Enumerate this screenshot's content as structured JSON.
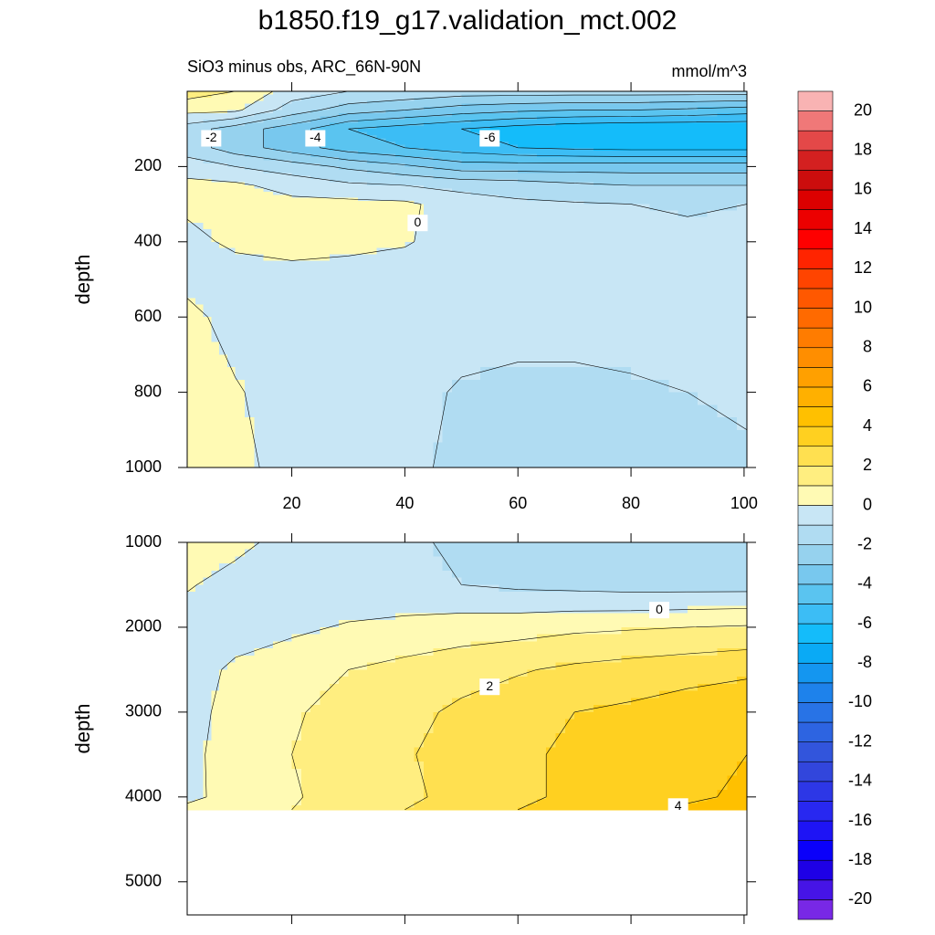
{
  "chart_data": {
    "type": "contour",
    "title": "b1850.f19_g17.validation_mct.002",
    "subtitle": "SiO3 minus obs, ARC_66N-90N",
    "units": "mmol/m^3",
    "levels": [
      -20,
      -19,
      -18,
      -17,
      -16,
      -15,
      -14,
      -13,
      -12,
      -11,
      -10,
      -9,
      -8,
      -7,
      -6,
      -5,
      -4,
      -3,
      -2,
      -1,
      0,
      1,
      2,
      3,
      4,
      5,
      6,
      7,
      8,
      9,
      10,
      11,
      12,
      13,
      14,
      15,
      16,
      17,
      18,
      19,
      20
    ],
    "colors": [
      "#7828e6",
      "#4614e6",
      "#1e00e6",
      "#0a00fa",
      "#1e14f5",
      "#2828f0",
      "#2d37e6",
      "#3246dc",
      "#3255dc",
      "#2d64e1",
      "#2873e6",
      "#1e82eb",
      "#1496f0",
      "#0aaaf5",
      "#14bcfa",
      "#3cbdf5",
      "#5ac4f0",
      "#78c8ee",
      "#96d2ee",
      "#b0dcf2",
      "#c8e6f5",
      "#fffab4",
      "#ffee80",
      "#ffe050",
      "#ffd020",
      "#ffc000",
      "#ffb000",
      "#ffa000",
      "#ff8e00",
      "#ff7c00",
      "#ff6a00",
      "#ff5800",
      "#ff4400",
      "#ff2400",
      "#fe0000",
      "#ec0000",
      "#dc0000",
      "#cc0d0d",
      "#d42020",
      "#e44848",
      "#f07878",
      "#f9b3b3"
    ],
    "colorbar_ticks": [
      20,
      18,
      16,
      14,
      12,
      10,
      8,
      6,
      4,
      2,
      0,
      -2,
      -4,
      -6,
      -8,
      -10,
      -12,
      -14,
      -16,
      -18,
      -20
    ],
    "xlim": [
      1.5,
      100.5
    ],
    "xticks": [
      20,
      40,
      60,
      80,
      100
    ],
    "x": [
      1.5,
      10,
      20,
      30,
      40,
      50,
      60,
      70,
      80,
      90,
      100.5
    ],
    "panels": [
      {
        "ylabel": "depth",
        "ylim": [
          0,
          1000
        ],
        "yticks": [
          200,
          400,
          600,
          800,
          1000
        ],
        "depth": [
          0,
          50,
          100,
          150,
          200,
          250,
          300,
          400,
          500,
          600,
          800,
          1000
        ],
        "z": [
          [
            1.5,
            1.0,
            -0.5,
            -1.0,
            -1.2,
            -1.5,
            -1.5,
            -1.5,
            -1.5,
            -1.5,
            -1.5
          ],
          [
            0.3,
            0.2,
            -1.5,
            -2.5,
            -3,
            -3.5,
            -3.8,
            -4,
            -4,
            -4.2,
            -4.5
          ],
          [
            -1.5,
            -2.5,
            -3.5,
            -5,
            -5.5,
            -6,
            -6.5,
            -6.8,
            -7,
            -7,
            -7
          ],
          [
            -1.5,
            -2.5,
            -3.5,
            -4.5,
            -5,
            -5.5,
            -6,
            -6.2,
            -6.3,
            -6.3,
            -6.3
          ],
          [
            -0.5,
            -1.0,
            -1.5,
            -2.2,
            -2.8,
            -3.5,
            -3.5,
            -3.5,
            -3.5,
            -3.5,
            -3.5
          ],
          [
            0.3,
            0.2,
            -0.4,
            -0.8,
            -1.0,
            -1.3,
            -1.5,
            -1.8,
            -2.0,
            -2.0,
            -2.0
          ],
          [
            0.2,
            0.3,
            0.3,
            0.3,
            0.2,
            -0.5,
            -0.8,
            -0.9,
            -1.0,
            -1.1,
            -1.0
          ],
          [
            -0.3,
            0.2,
            0.4,
            0.3,
            0.1,
            -0.5,
            -0.7,
            -0.7,
            -0.7,
            -0.8,
            -0.8
          ],
          [
            -0.3,
            -0.5,
            -0.4,
            -0.5,
            -0.6,
            -0.6,
            -0.6,
            -0.7,
            -0.7,
            -0.7,
            -0.7
          ],
          [
            0.3,
            -0.4,
            -0.5,
            -0.6,
            -0.6,
            -0.6,
            -0.7,
            -0.7,
            -0.7,
            -0.7,
            -0.7
          ],
          [
            0.4,
            0.1,
            -0.5,
            -0.6,
            -0.7,
            -1.1,
            -1.2,
            -1.2,
            -1.1,
            -1.0,
            -0.9
          ],
          [
            0.4,
            0.3,
            -0.4,
            -0.6,
            -0.8,
            -1.2,
            -1.2,
            -1.3,
            -1.3,
            -1.2,
            -1.1
          ]
        ]
      },
      {
        "ylabel": "depth",
        "ylim": [
          1000,
          5390
        ],
        "yticks": [
          1000,
          2000,
          3000,
          4000,
          5000
        ],
        "depth": [
          1000,
          1500,
          2000,
          2500,
          3000,
          3500,
          4000,
          4150
        ],
        "z": [
          [
            0.4,
            0.3,
            -0.4,
            -0.6,
            -0.8,
            -1.2,
            -1.2,
            -1.3,
            -1.3,
            -1.2,
            -1.1
          ],
          [
            0.1,
            -0.4,
            -0.6,
            -0.7,
            -0.8,
            -1.0,
            -1.2,
            -1.3,
            -1.4,
            -1.4,
            -1.4
          ],
          [
            -0.5,
            -0.5,
            -0.2,
            0.1,
            0.3,
            0.5,
            0.6,
            0.8,
            0.9,
            1.0,
            1.1
          ],
          [
            -0.5,
            0.2,
            0.6,
            1.0,
            1.3,
            1.6,
            1.9,
            2.2,
            2.4,
            2.6,
            2.8
          ],
          [
            -0.4,
            0.4,
            0.9,
            1.3,
            1.7,
            2.2,
            2.6,
            3.0,
            3.2,
            3.5,
            3.7
          ],
          [
            -0.3,
            0.5,
            1.0,
            1.5,
            1.9,
            2.4,
            2.8,
            3.2,
            3.5,
            3.8,
            4.0
          ],
          [
            -0.2,
            0.3,
            0.9,
            1.4,
            1.8,
            2.3,
            2.8,
            3.2,
            3.6,
            3.9,
            4.1
          ],
          [
            0.2,
            0.6,
            1.0,
            1.5,
            2.0,
            2.5,
            3.0,
            3.5,
            3.8,
            4.1,
            4.3
          ]
        ]
      }
    ]
  }
}
